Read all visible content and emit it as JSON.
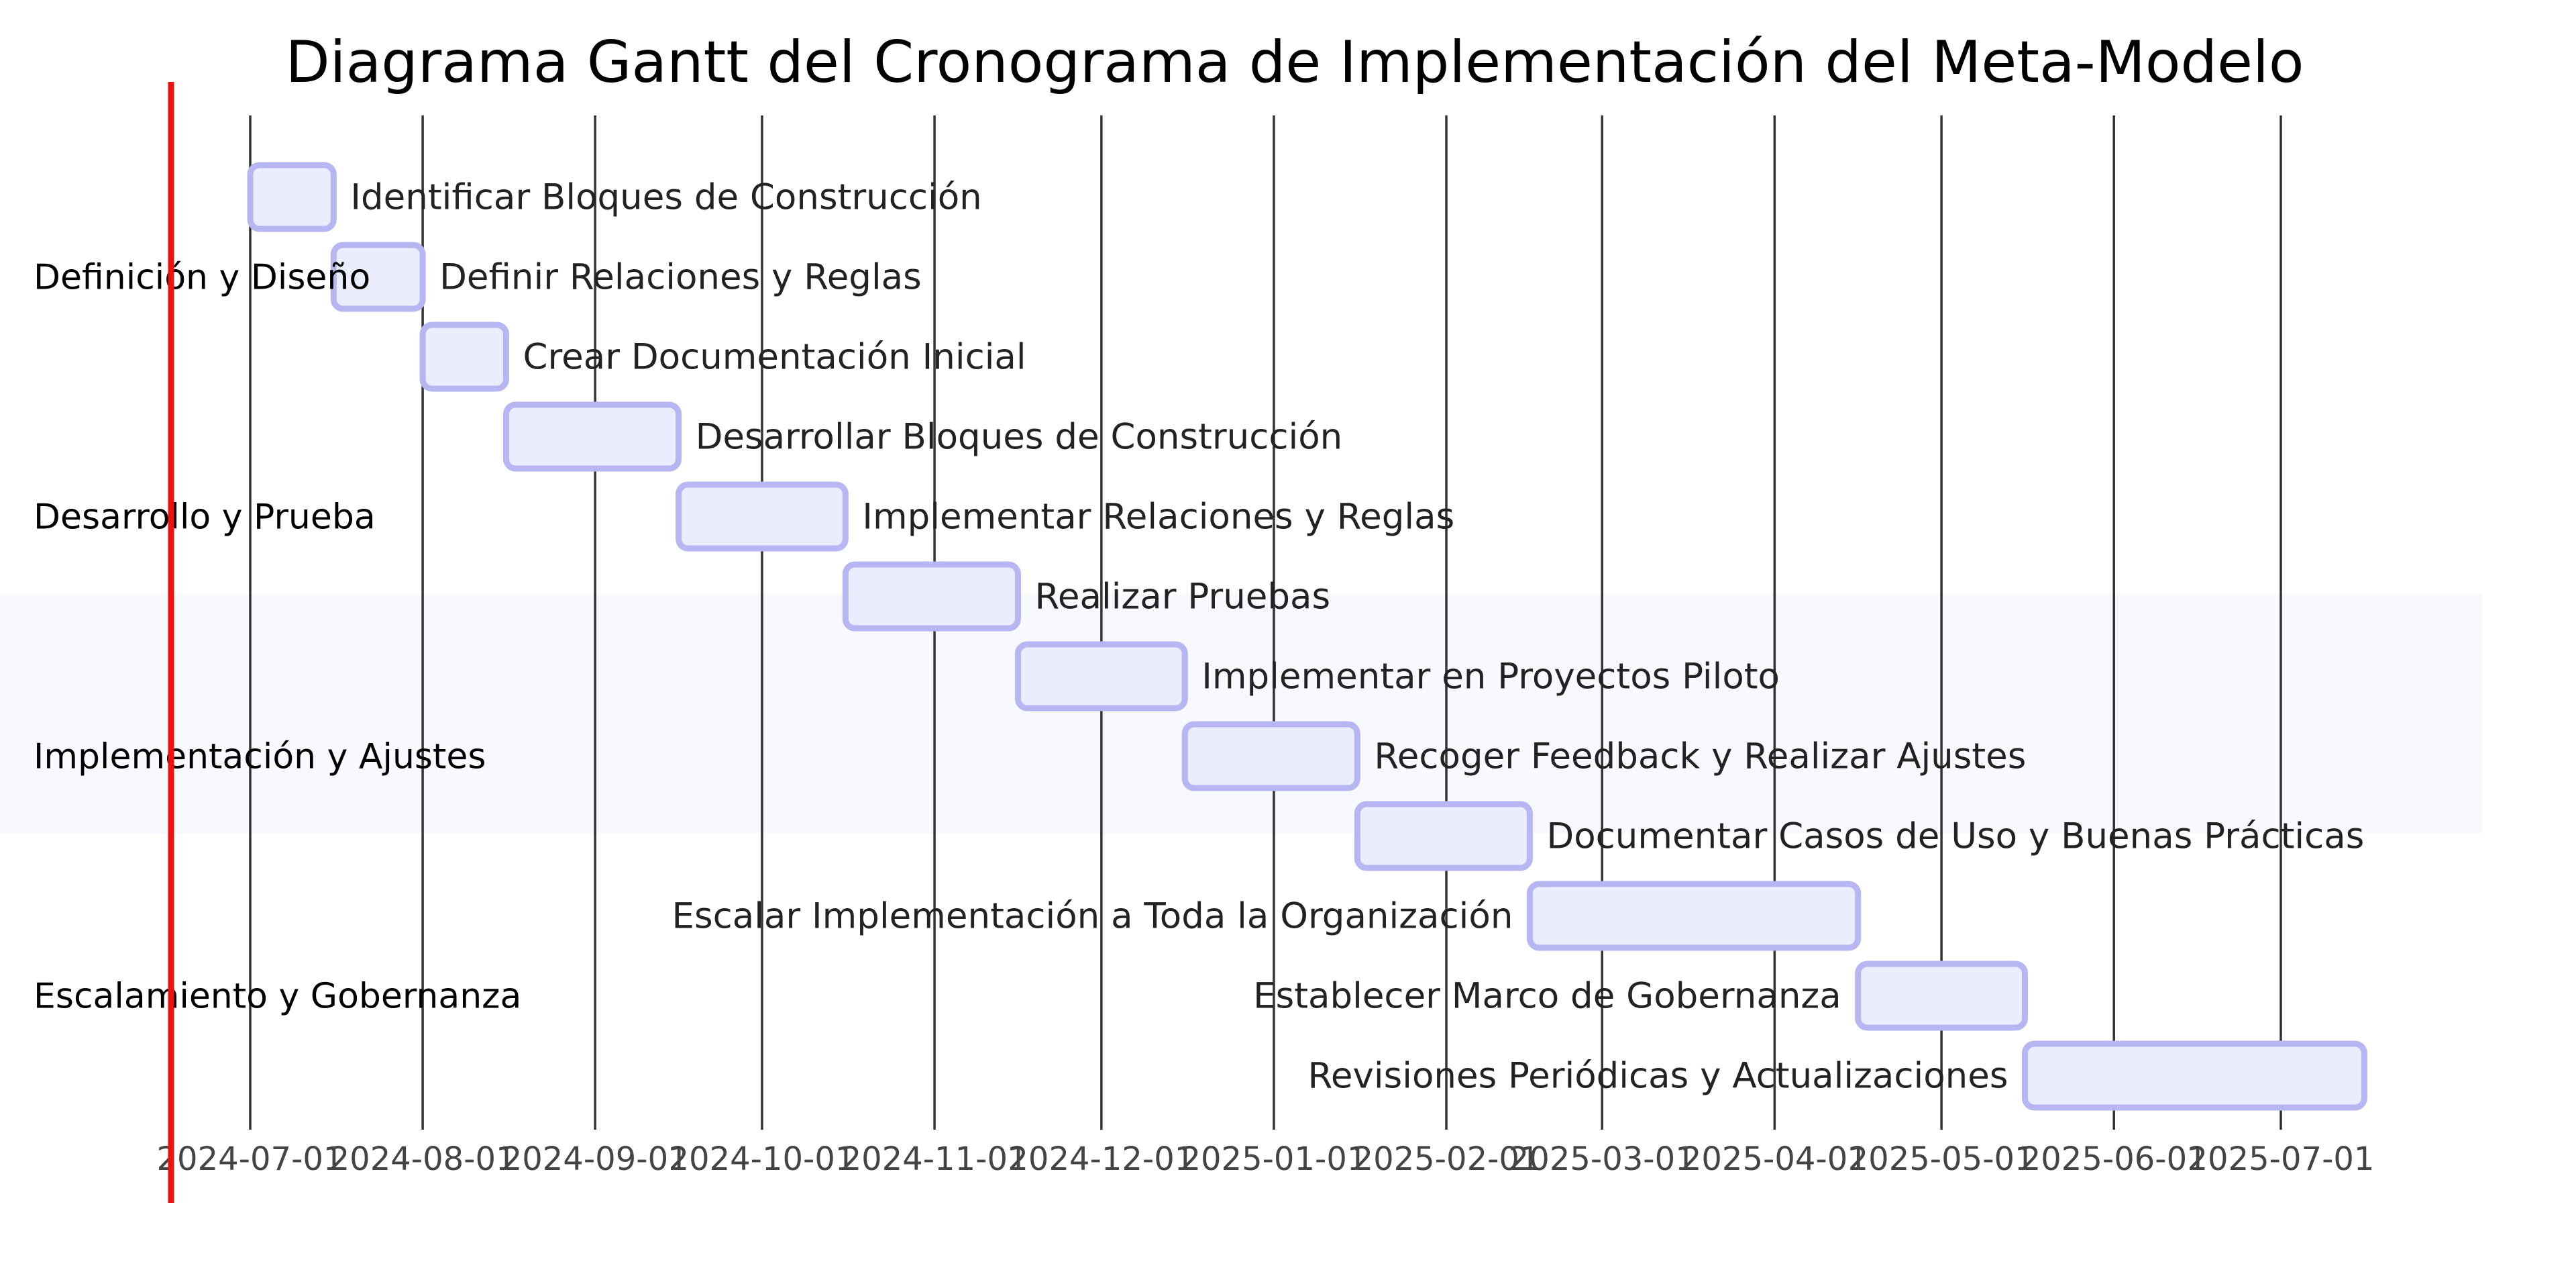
{
  "chart_data": {
    "type": "gantt",
    "title": "Diagrama Gantt del Cronograma de Implementación del Meta-Modelo",
    "x_ticks": [
      "2024-07-01",
      "2024-08-01",
      "2024-09-01",
      "2024-10-01",
      "2024-11-01",
      "2024-12-01",
      "2025-01-01",
      "2025-02-01",
      "2025-03-01",
      "2025-04-01",
      "2025-05-01",
      "2025-06-01",
      "2025-07-01"
    ],
    "xlim": [
      "2024-07-01",
      "2025-07-01"
    ],
    "grid": true,
    "sections": [
      {
        "name": "Definición y Diseño",
        "tasks": [
          {
            "label": "Identificar Bloques de Construcción",
            "start": "2024-07-01",
            "end": "2024-07-15"
          },
          {
            "label": "Definir Relaciones y Reglas",
            "start": "2024-07-16",
            "end": "2024-07-31"
          },
          {
            "label": "Crear Documentación Inicial",
            "start": "2024-08-01",
            "end": "2024-08-15"
          }
        ]
      },
      {
        "name": "Desarrollo y Prueba",
        "tasks": [
          {
            "label": "Desarrollar Bloques de Construcción",
            "start": "2024-08-16",
            "end": "2024-09-15"
          },
          {
            "label": "Implementar Relaciones y Reglas",
            "start": "2024-09-16",
            "end": "2024-10-15"
          },
          {
            "label": "Realizar Pruebas",
            "start": "2024-10-16",
            "end": "2024-11-15"
          }
        ]
      },
      {
        "name": "Implementación y Ajustes",
        "tasks": [
          {
            "label": "Implementar en Proyectos Piloto",
            "start": "2024-11-16",
            "end": "2024-12-15"
          },
          {
            "label": "Recoger Feedback y Realizar Ajustes",
            "start": "2024-12-16",
            "end": "2025-01-15"
          },
          {
            "label": "Documentar Casos de Uso y Buenas Prácticas",
            "start": "2025-01-16",
            "end": "2025-02-15"
          }
        ]
      },
      {
        "name": "Escalamiento y Gobernanza",
        "tasks": [
          {
            "label": "Escalar Implementación a Toda la Organización",
            "start": "2025-02-16",
            "end": "2025-04-15"
          },
          {
            "label": "Establecer Marco de Gobernanza",
            "start": "2025-04-16",
            "end": "2025-05-15"
          },
          {
            "label": "Revisiones Periódicas y Actualizaciones",
            "start": "2025-05-16",
            "end": "2025-07-15"
          }
        ]
      }
    ]
  },
  "colors": {
    "bar_fill": "#ececff",
    "bar_stroke": "#b6b6f3",
    "today_line": "#ee1111",
    "highlight_section_bg": "#f8f8ff",
    "grid": "#333333"
  }
}
